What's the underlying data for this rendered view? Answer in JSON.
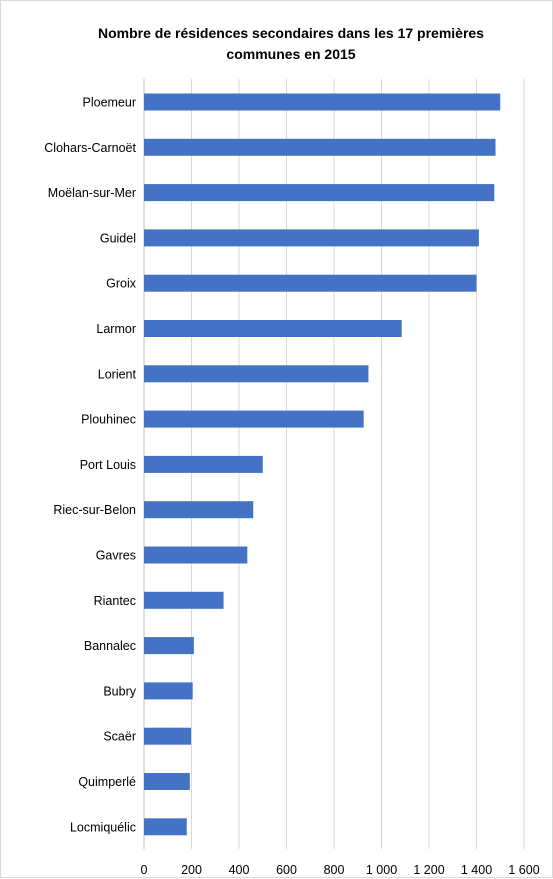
{
  "chart_data": {
    "type": "bar",
    "orientation": "horizontal",
    "title": "Nombre de résidences secondaires dans les 17 premières\ncommunes en 2015",
    "categories": [
      "Ploemeur",
      "Clohars-Carnoët",
      "Moëlan-sur-Mer",
      "Guidel",
      "Groix",
      "Larmor",
      "Lorient",
      "Plouhinec",
      "Port Louis",
      "Riec-sur-Belon",
      "Gavres",
      "Riantec",
      "Bannalec",
      "Bubry",
      "Scaër",
      "Quimperlé",
      "Locmiquélic"
    ],
    "values": [
      1500,
      1480,
      1475,
      1410,
      1400,
      1085,
      945,
      925,
      500,
      460,
      435,
      335,
      210,
      205,
      198,
      193,
      180
    ],
    "xlim": [
      0,
      1600
    ],
    "xticks": [
      0,
      200,
      400,
      600,
      800,
      1000,
      1200,
      1400,
      1600
    ],
    "xtick_labels": [
      "0",
      "200",
      "400",
      "600",
      "800",
      "1 000",
      "1 200",
      "1 400",
      "1 600"
    ],
    "xlabel": "",
    "ylabel": "",
    "grid": "vertical",
    "legend": "none",
    "bar_color": "#4472c4",
    "grid_color": "#d9d9d9"
  }
}
